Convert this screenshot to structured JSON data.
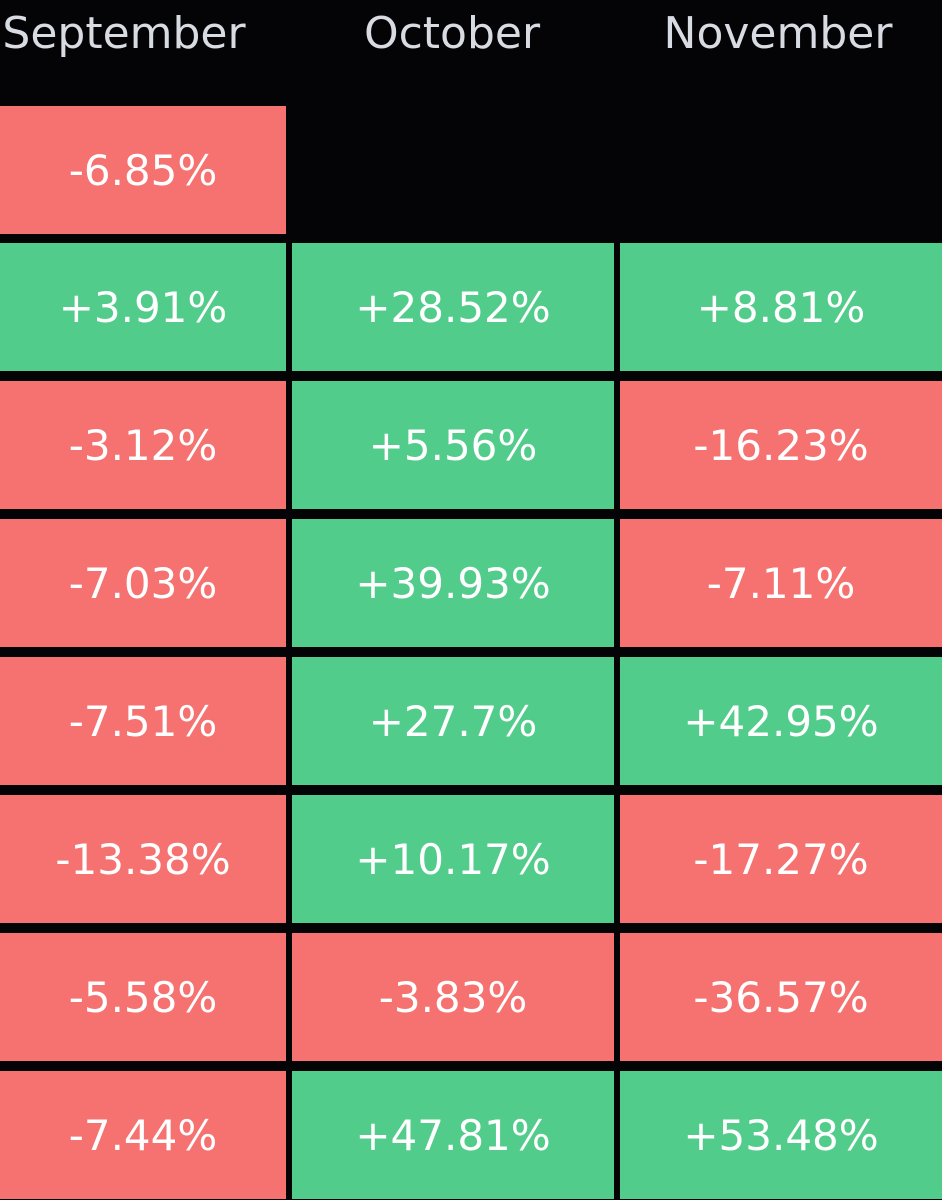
{
  "colors": {
    "background": "#040406",
    "positive": "#52cc8b",
    "negative": "#f57270",
    "header_text": "#d8dce2",
    "cell_text": "#ffffff"
  },
  "chart_data": {
    "type": "table",
    "columns": [
      "September",
      "October",
      "November"
    ],
    "rows": [
      [
        "-6.85%",
        "",
        ""
      ],
      [
        "+3.91%",
        "+28.52%",
        "+8.81%"
      ],
      [
        "-3.12%",
        "+5.56%",
        "-16.23%"
      ],
      [
        "-7.03%",
        "+39.93%",
        "-7.11%"
      ],
      [
        "-7.51%",
        "+27.7%",
        "+42.95%"
      ],
      [
        "-13.38%",
        "+10.17%",
        "-17.27%"
      ],
      [
        "-5.58%",
        "-3.83%",
        "-36.57%"
      ],
      [
        "-7.44%",
        "+47.81%",
        "+53.48%"
      ]
    ]
  }
}
